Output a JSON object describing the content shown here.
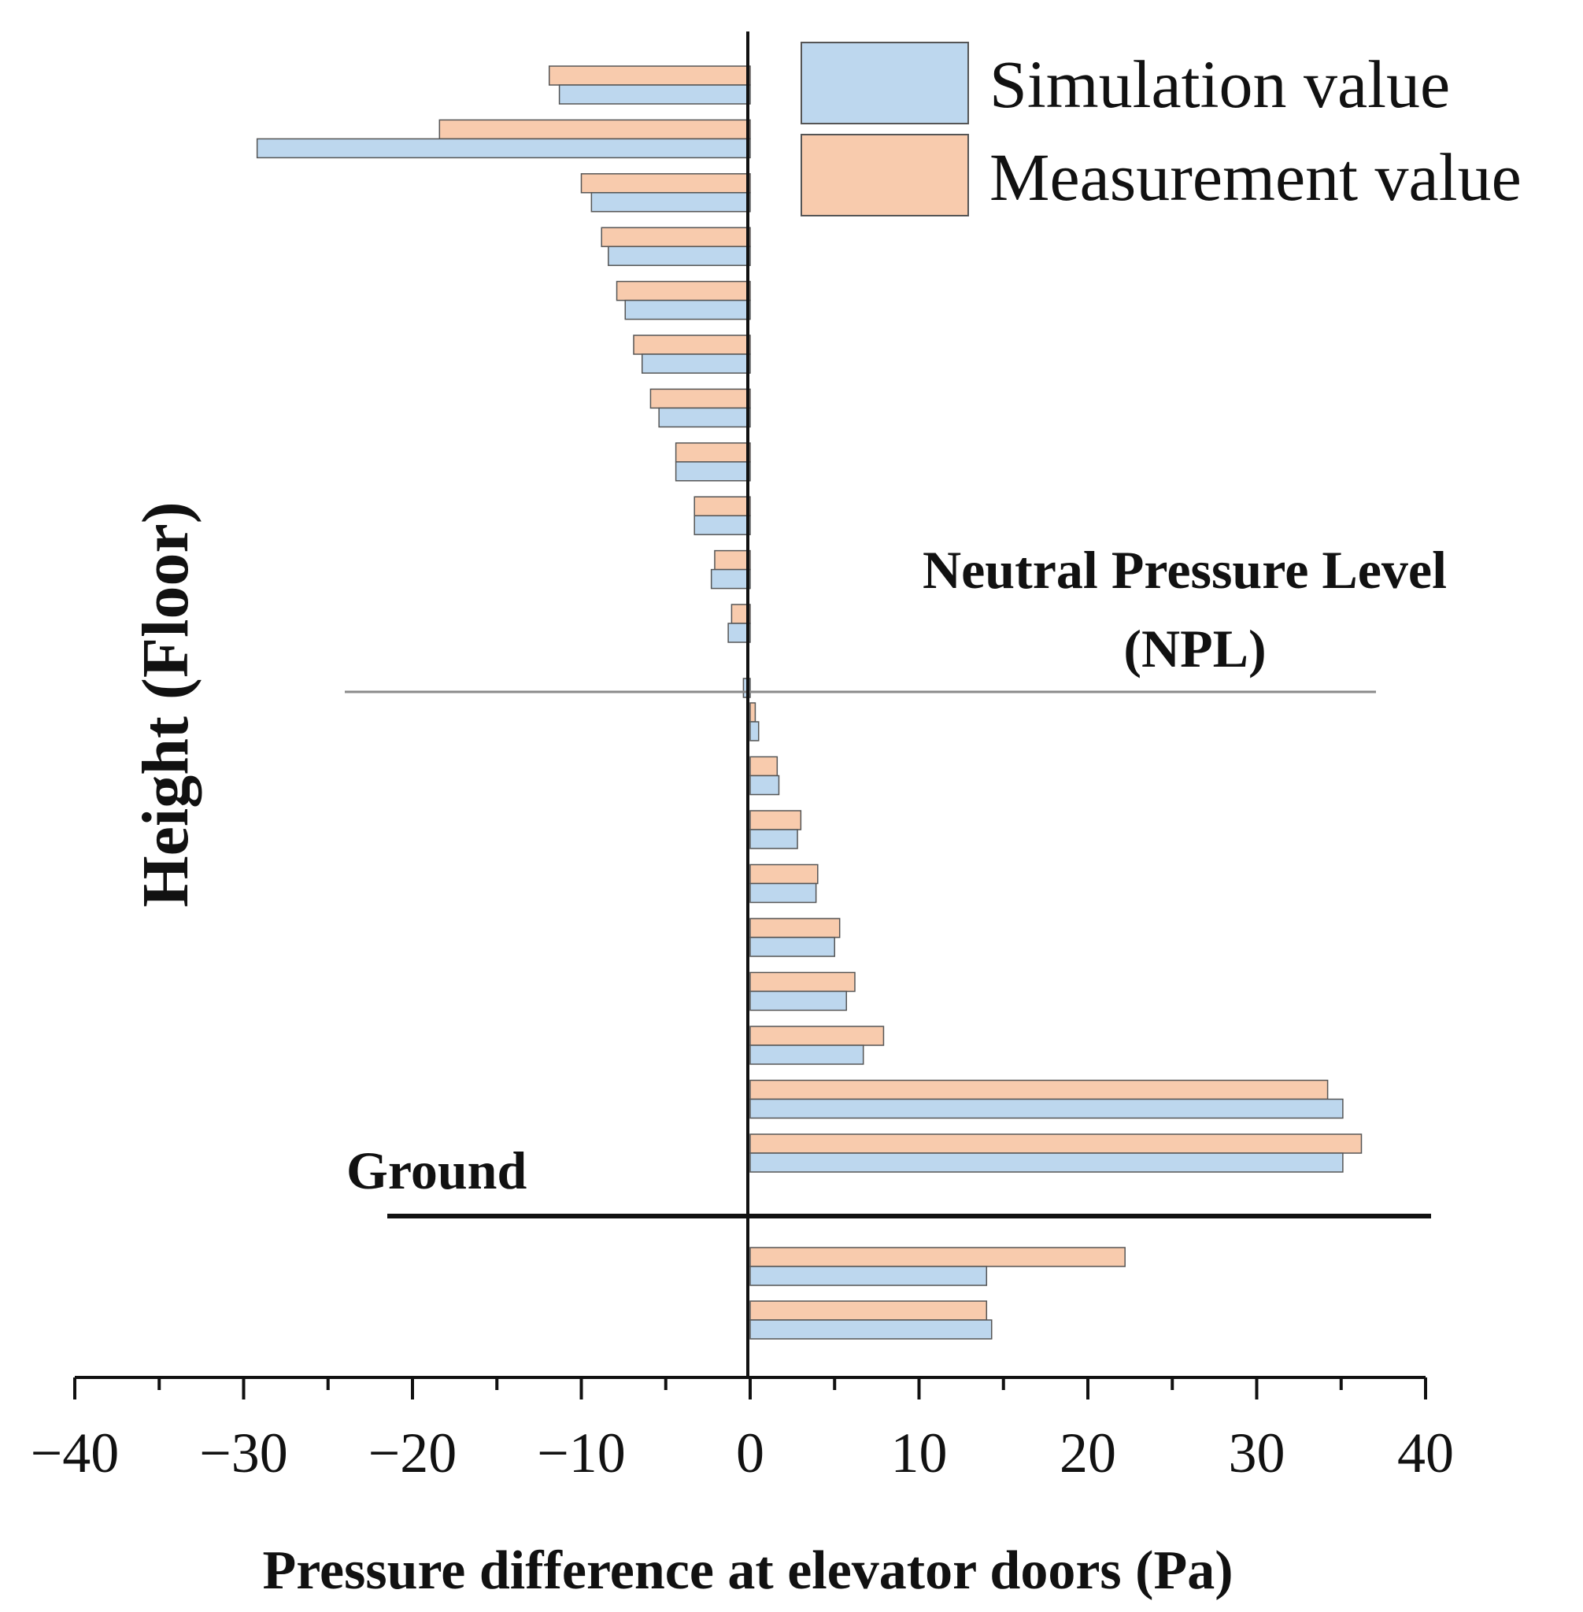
{
  "chart_data": {
    "type": "bar",
    "orientation": "horizontal",
    "xlabel": "Pressure difference at elevator doors (Pa)",
    "ylabel": "Height (Floor)",
    "xlim": [
      -40,
      40
    ],
    "xticks": [
      -40,
      -30,
      -20,
      -10,
      0,
      10,
      20,
      30,
      40
    ],
    "xtick_labels": [
      "−40",
      "−30",
      "−20",
      "−10",
      "0",
      "10",
      "20",
      "30",
      "40"
    ],
    "grid": false,
    "legend_position": "top-right",
    "annotations": {
      "npl_line1": "Neutral Pressure Level",
      "npl_line2": "(NPL)",
      "ground": "Ground"
    },
    "colors": {
      "simulation": "#bdd7ee",
      "measurement": "#f8cbad",
      "edge": "#555555"
    },
    "series": [
      {
        "name": "Simulation value",
        "values": [
          -11.3,
          -29.2,
          -9.4,
          -8.4,
          -7.4,
          -6.4,
          -5.4,
          -4.4,
          -3.3,
          -2.3,
          -1.3,
          -0.4,
          0.5,
          1.7,
          2.8,
          3.9,
          5.0,
          5.7,
          6.7,
          35.1,
          35.1,
          14.0,
          14.3
        ]
      },
      {
        "name": "Measurement value",
        "values": [
          -11.9,
          -18.4,
          -10.0,
          -8.8,
          -7.9,
          -6.9,
          -5.9,
          -4.4,
          -3.3,
          -2.1,
          -1.1,
          null,
          0.3,
          1.6,
          3.0,
          4.0,
          5.3,
          6.2,
          7.9,
          34.2,
          36.2,
          22.2,
          14.0
        ]
      }
    ]
  }
}
